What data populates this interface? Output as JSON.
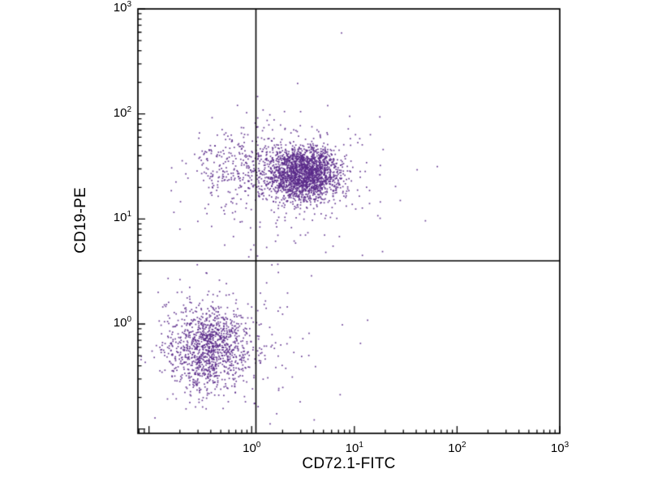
{
  "figure": {
    "background": "#ffffff",
    "axis_color": "#000000"
  },
  "chart_data": {
    "type": "scatter",
    "title": "",
    "xlabel": "CD72.1-FITC",
    "ylabel": "CD19-PE",
    "x_scale": "log",
    "y_scale": "log",
    "xlim": [
      0.078,
      1000
    ],
    "ylim": [
      0.091,
      1000
    ],
    "x_ticks": [
      1,
      10,
      100,
      1000
    ],
    "y_ticks": [
      1,
      10,
      100,
      1000
    ],
    "minor_tick_multiples": [
      2,
      3,
      4,
      5,
      6,
      7,
      8,
      9
    ],
    "grid": false,
    "legend": "none",
    "dot_color": "#5a2a8a",
    "quadrant_gate": {
      "x": 1.1,
      "y": 4.0
    },
    "seed": 20,
    "populations": [
      {
        "name": "upper-right-cluster-core",
        "center": [
          3.2,
          27
        ],
        "sigma_decades": [
          0.18,
          0.13
        ],
        "count": 2000
      },
      {
        "name": "upper-left-shoulder",
        "center": [
          0.75,
          30
        ],
        "sigma_decades": [
          0.25,
          0.2
        ],
        "count": 320
      },
      {
        "name": "upper-cluster-halo",
        "center": [
          3.0,
          24
        ],
        "sigma_decades": [
          0.45,
          0.38
        ],
        "count": 170
      },
      {
        "name": "lower-left-cluster-core",
        "center": [
          0.39,
          0.59
        ],
        "sigma_decades": [
          0.2,
          0.2
        ],
        "count": 1100
      },
      {
        "name": "lower-left-cluster-halo",
        "center": [
          0.45,
          0.6
        ],
        "sigma_decades": [
          0.35,
          0.35
        ],
        "count": 130
      },
      {
        "name": "sparse-mid-column",
        "center": [
          2.2,
          0.9
        ],
        "sigma_decades": [
          0.3,
          0.55
        ],
        "count": 45
      }
    ],
    "outliers": [
      [
        7.5,
        590
      ],
      [
        28,
        15
      ],
      [
        5.5,
        120
      ],
      [
        1.8,
        7.0
      ],
      [
        0.2,
        8.0
      ],
      [
        9.0,
        95
      ]
    ]
  }
}
